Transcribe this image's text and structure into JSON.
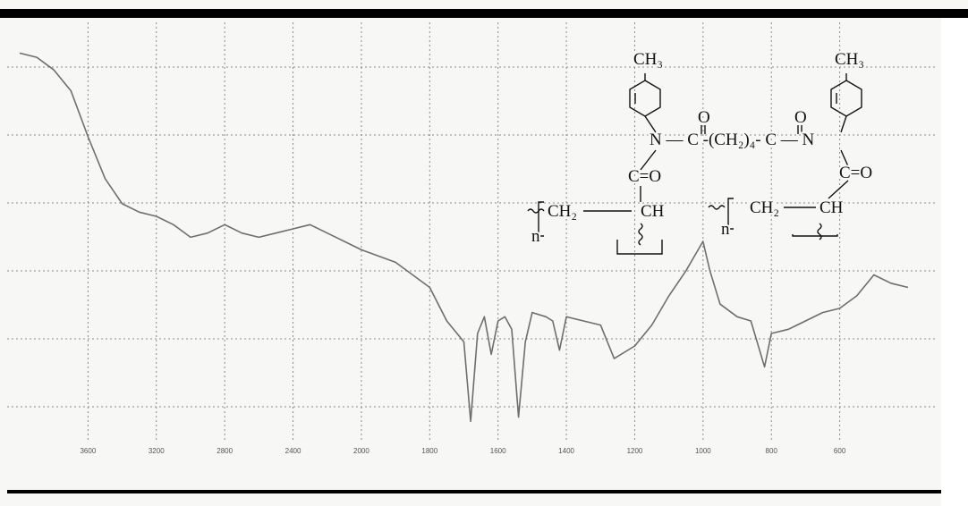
{
  "chart_data": {
    "type": "line",
    "x": [
      4000,
      3900,
      3800,
      3700,
      3600,
      3500,
      3400,
      3300,
      3200,
      3100,
      3000,
      2900,
      2800,
      2700,
      2600,
      2500,
      2400,
      2300,
      2200,
      2100,
      2000,
      1900,
      1800,
      1750,
      1700,
      1680,
      1660,
      1640,
      1620,
      1600,
      1580,
      1560,
      1540,
      1520,
      1500,
      1460,
      1440,
      1420,
      1400,
      1300,
      1260,
      1200,
      1150,
      1100,
      1050,
      1000,
      980,
      950,
      900,
      860,
      820,
      800,
      750,
      700,
      650,
      600,
      550,
      500,
      450,
      400
    ],
    "series": [
      {
        "color": "#6e6e6e",
        "values": [
          92,
          91,
          88,
          83,
          72,
          62,
          56,
          54,
          53,
          51,
          48,
          49,
          51,
          49,
          48,
          49,
          50,
          51,
          49,
          47,
          45,
          42,
          36,
          28,
          23,
          4,
          25,
          29,
          20,
          28,
          29,
          26,
          5,
          23,
          30,
          29,
          28,
          21,
          29,
          27,
          19,
          22,
          27,
          34,
          40,
          47,
          40,
          32,
          29,
          28,
          17,
          25,
          26,
          28,
          30,
          31,
          34,
          39,
          37,
          36
        ]
      }
    ],
    "xlim": [
      4000,
      400
    ],
    "ylim": [
      0,
      100
    ],
    "xticks": [
      3600,
      3200,
      2800,
      2400,
      2000,
      1800,
      1600,
      1400,
      1200,
      1000,
      800,
      600
    ],
    "grid": true,
    "annotations": [
      "CH₃",
      "CH₃",
      "O",
      "O",
      "N — C -(CH₂)₄- C — N",
      "C=O",
      "C=O",
      "CH₂",
      "CH",
      "CH₂",
      "CH",
      "n",
      "n"
    ]
  }
}
